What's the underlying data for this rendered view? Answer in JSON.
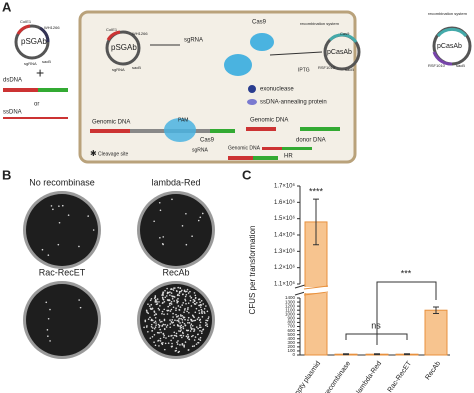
{
  "diagram": {
    "label": "A",
    "texts": [
      "CoIE1",
      "WH1266",
      "pSGAb",
      "sgRNA",
      "sacB",
      "dsDNA",
      "+",
      "or",
      "ssDNA",
      "CoIE1",
      "WH1266",
      "pSGAb",
      "sgRNA",
      "sacB",
      "sgRNA",
      "Cas9",
      "IPTG",
      "recombination system",
      "pCasAb",
      "Cas9",
      "RSF1010",
      "sacB",
      "recombination system",
      "pCasAb",
      "RSF1010",
      "sacB",
      "exonuclease",
      "ssDNA-annealing protein",
      "Genomic DNA",
      "PAM",
      "Cas9",
      "sgRNA",
      "Genomic DNA",
      "donor DNA",
      "HR",
      "Cleavage site",
      "Genomic DNA"
    ]
  },
  "plates": {
    "label": "B",
    "names": [
      "No recombinase",
      "lambda-Red",
      "Rac-RecET",
      "RecAb"
    ]
  },
  "chart_data": {
    "type": "bar",
    "panel_label": "C",
    "y_label": "CFUS per transformation",
    "categories": [
      "empty plasmid",
      "no recombinase",
      "lambda-Red",
      "Rac-RecET",
      "RecAb"
    ],
    "values": [
      1480000,
      20,
      20,
      20,
      1100
    ],
    "errors": [
      140000,
      10,
      10,
      10,
      80
    ],
    "color": "#f7c48f",
    "edge_color": "#e8913e",
    "y_segments": [
      {
        "ylim": [
          0,
          1400
        ],
        "yticks": [
          0,
          100,
          200,
          300,
          400,
          500,
          600,
          700,
          800,
          900,
          1000,
          1100,
          1200,
          1300,
          1400
        ]
      },
      {
        "ylim": [
          1100000,
          1700000
        ],
        "yticks": [
          {
            "value": 1100000,
            "label": "1.1×10⁶"
          },
          {
            "value": 1200000,
            "label": "1.2×10⁶"
          },
          {
            "value": 1300000,
            "label": "1.3×10⁶"
          },
          {
            "value": 1400000,
            "label": "1.4×10⁶"
          },
          {
            "value": 1500000,
            "label": "1.5×10⁶"
          },
          {
            "value": 1600000,
            "label": "1.6×10⁶"
          },
          {
            "value": 1700000,
            "label": "1.7×10⁶"
          }
        ]
      }
    ],
    "annotations": [
      "****",
      "ns",
      "***"
    ]
  }
}
